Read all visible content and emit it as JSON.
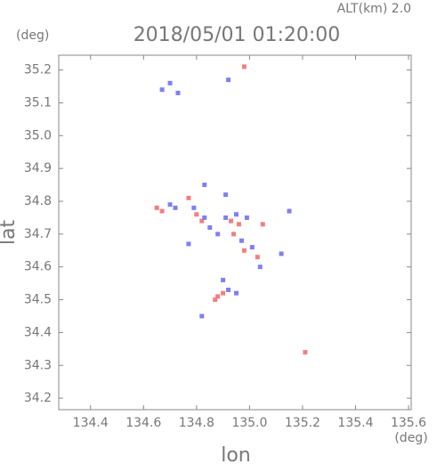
{
  "chart_data": {
    "type": "scatter",
    "header": "ALT(km) 2.0",
    "title": "2018/05/01 01:20:00",
    "y_unit": "(deg)",
    "x_unit": "(deg)",
    "xlabel": "lon",
    "ylabel": "lat",
    "xlim": [
      134.28,
      135.61
    ],
    "ylim": [
      34.165,
      35.245
    ],
    "xticks": [
      134.4,
      134.6,
      134.8,
      {
        "value": 135.0,
        "label": "135.0"
      },
      135.2,
      135.4,
      135.6
    ],
    "yticks": [
      34.2,
      34.3,
      34.4,
      34.5,
      34.6,
      34.7,
      34.8,
      34.9,
      {
        "value": 35.0,
        "label": "35.0"
      },
      35.1,
      35.2
    ],
    "series": [
      {
        "color": "#f08080",
        "x": [
          134.98,
          134.65,
          134.67,
          134.8,
          134.82,
          134.77,
          134.93,
          134.96,
          134.98,
          135.03,
          134.88,
          134.87,
          134.9,
          135.21,
          134.94,
          135.05
        ],
        "values": [
          35.21,
          34.78,
          34.77,
          34.76,
          34.74,
          34.81,
          34.74,
          34.73,
          34.65,
          34.63,
          34.51,
          34.5,
          34.52,
          34.34,
          34.7,
          34.73
        ]
      },
      {
        "color": "#8080f0",
        "x": [
          134.67,
          134.7,
          134.73,
          134.92,
          134.72,
          134.7,
          134.79,
          134.83,
          134.85,
          134.91,
          134.95,
          134.99,
          134.97,
          135.01,
          135.04,
          135.12,
          134.9,
          134.92,
          134.95,
          134.82,
          134.91,
          134.83,
          135.15,
          134.77,
          134.88
        ],
        "values": [
          35.14,
          35.16,
          35.13,
          35.17,
          34.78,
          34.79,
          34.78,
          34.75,
          34.72,
          34.75,
          34.76,
          34.75,
          34.68,
          34.66,
          34.6,
          34.64,
          34.56,
          34.53,
          34.52,
          34.45,
          34.82,
          34.85,
          34.77,
          34.67,
          34.7
        ]
      }
    ]
  }
}
